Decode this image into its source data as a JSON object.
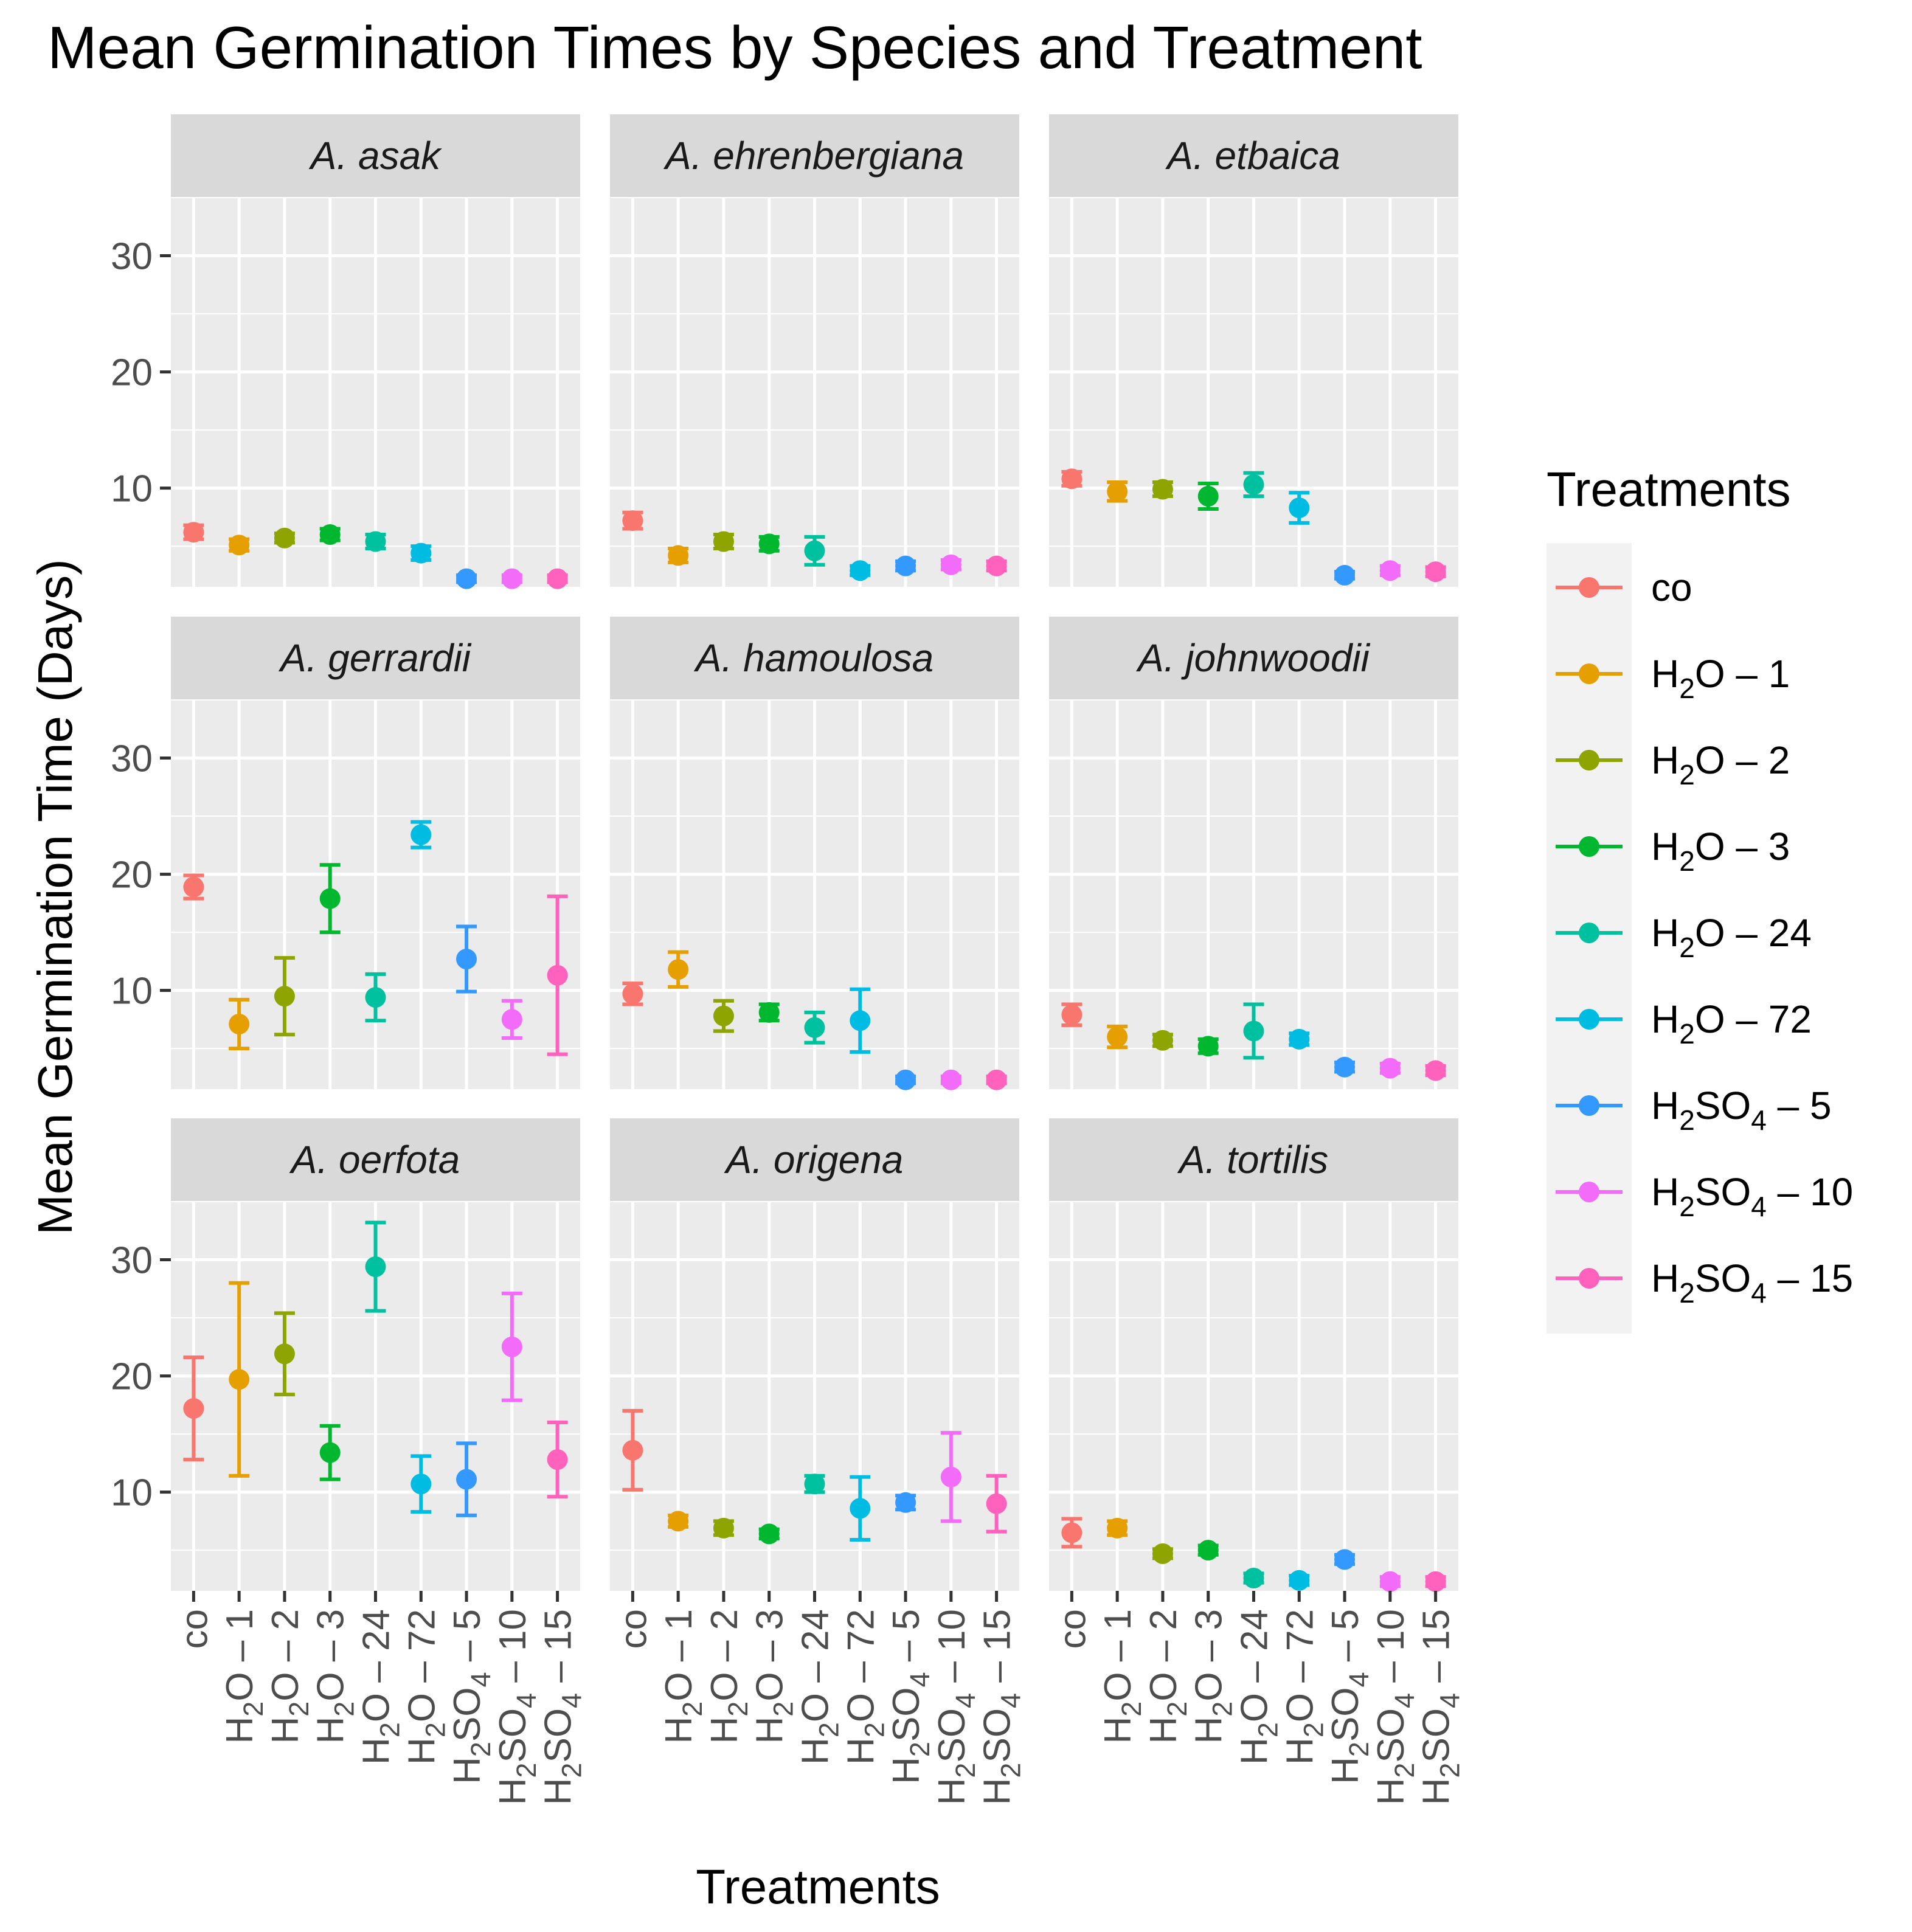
{
  "chart_data": {
    "type": "scatter",
    "variant": "faceted point-range with error bars",
    "title": "Mean Germination Times by Species and Treatment",
    "xlabel": "Treatments",
    "ylabel": "Mean Germination Time (Days)",
    "ylim": [
      1.5,
      35
    ],
    "yticks": [
      10,
      20,
      30
    ],
    "grid": true,
    "facet_layout": "3x3",
    "categories": [
      "co",
      "H2O-1",
      "H2O-2",
      "H2O-3",
      "H2O-24",
      "H2O-72",
      "H2SO4-5",
      "H2SO4-10",
      "H2SO4-15"
    ],
    "category_labels": [
      {
        "chem": "co",
        "num": ""
      },
      {
        "chem": "H|2|O",
        "num": "1"
      },
      {
        "chem": "H|2|O",
        "num": "2"
      },
      {
        "chem": "H|2|O",
        "num": "3"
      },
      {
        "chem": "H|2|O",
        "num": "24"
      },
      {
        "chem": "H|2|O",
        "num": "72"
      },
      {
        "chem": "H|2|SO|4|",
        "num": "5"
      },
      {
        "chem": "H|2|SO|4|",
        "num": "10"
      },
      {
        "chem": "H|2|SO|4|",
        "num": "15"
      }
    ],
    "colors": [
      "#F8766D",
      "#E69F00",
      "#8EA400",
      "#00B72F",
      "#00C19F",
      "#00BCE3",
      "#3399FF",
      "#F26CF9",
      "#FF62BC"
    ],
    "legend": {
      "title": "Treatments",
      "position": "right",
      "entries": [
        "co",
        "H2O-1",
        "H2O-2",
        "H2O-3",
        "H2O-24",
        "H2O-72",
        "H2SO4-5",
        "H2SO4-10",
        "H2SO4-15"
      ]
    },
    "facets": [
      {
        "species": "A. asak",
        "mean": [
          6.2,
          5.1,
          5.7,
          6.0,
          5.4,
          4.4,
          2.2,
          2.2,
          2.2
        ],
        "lower": [
          5.6,
          4.6,
          5.3,
          5.5,
          4.8,
          3.8,
          1.9,
          1.9,
          1.9
        ],
        "upper": [
          6.8,
          5.6,
          6.1,
          6.5,
          6.0,
          5.0,
          2.5,
          2.5,
          2.5
        ]
      },
      {
        "species": "A. ehrenbergiana",
        "mean": [
          7.2,
          4.2,
          5.4,
          5.2,
          4.6,
          2.9,
          3.3,
          3.4,
          3.3
        ],
        "lower": [
          6.5,
          3.6,
          4.8,
          4.6,
          3.4,
          2.5,
          2.9,
          3.0,
          2.9
        ],
        "upper": [
          7.9,
          4.8,
          6.0,
          5.8,
          5.8,
          3.3,
          3.7,
          3.8,
          3.7
        ]
      },
      {
        "species": "A. etbaica",
        "mean": [
          10.8,
          9.7,
          9.9,
          9.3,
          10.3,
          8.3,
          2.5,
          2.9,
          2.8
        ],
        "lower": [
          10.2,
          8.9,
          9.3,
          8.2,
          9.3,
          7.0,
          2.2,
          2.5,
          2.4
        ],
        "upper": [
          11.4,
          10.5,
          10.5,
          10.4,
          11.3,
          9.6,
          2.8,
          3.3,
          3.2
        ]
      },
      {
        "species": "A. gerrardii",
        "mean": [
          18.9,
          7.1,
          9.5,
          17.9,
          9.4,
          23.4,
          12.7,
          7.5,
          11.3
        ],
        "lower": [
          17.9,
          5.0,
          6.2,
          15.0,
          7.4,
          22.3,
          9.9,
          5.9,
          4.5
        ],
        "upper": [
          19.9,
          9.2,
          12.8,
          20.8,
          11.4,
          24.5,
          15.5,
          9.1,
          18.1
        ]
      },
      {
        "species": "A. hamoulosa",
        "mean": [
          9.7,
          11.8,
          7.8,
          8.1,
          6.8,
          7.4,
          2.3,
          2.3,
          2.3
        ],
        "lower": [
          8.8,
          10.3,
          6.5,
          7.4,
          5.5,
          4.7,
          2.0,
          2.0,
          2.0
        ],
        "upper": [
          10.6,
          13.3,
          9.1,
          8.8,
          8.1,
          10.1,
          2.6,
          2.6,
          2.6
        ]
      },
      {
        "species": "A. johnwoodii",
        "mean": [
          7.9,
          6.0,
          5.7,
          5.2,
          6.5,
          5.8,
          3.4,
          3.3,
          3.1
        ],
        "lower": [
          7.0,
          5.1,
          5.2,
          4.6,
          4.2,
          5.3,
          3.0,
          2.9,
          2.7
        ],
        "upper": [
          8.8,
          6.9,
          6.2,
          5.8,
          8.8,
          6.3,
          3.8,
          3.7,
          3.5
        ]
      },
      {
        "species": "A. oerfota",
        "mean": [
          17.2,
          19.7,
          21.9,
          13.4,
          29.4,
          10.7,
          11.1,
          22.5,
          12.8
        ],
        "lower": [
          12.8,
          11.4,
          18.4,
          11.1,
          25.6,
          8.3,
          8.0,
          17.9,
          9.6
        ],
        "upper": [
          21.6,
          28.0,
          25.4,
          15.7,
          33.2,
          13.1,
          14.2,
          27.1,
          16.0
        ]
      },
      {
        "species": "A. origena",
        "mean": [
          13.6,
          7.5,
          6.9,
          6.4,
          10.7,
          8.6,
          9.1,
          11.3,
          9.0
        ],
        "lower": [
          10.2,
          7.0,
          6.3,
          6.0,
          10.0,
          5.9,
          8.5,
          7.5,
          6.6
        ],
        "upper": [
          17.0,
          8.0,
          7.5,
          6.8,
          11.4,
          11.3,
          9.7,
          15.1,
          11.4
        ]
      },
      {
        "species": "A. tortilis",
        "mean": [
          6.5,
          6.9,
          4.7,
          5.0,
          2.6,
          2.4,
          4.2,
          2.3,
          2.3
        ],
        "lower": [
          5.3,
          6.3,
          4.3,
          4.6,
          2.2,
          2.0,
          3.8,
          1.9,
          1.9
        ],
        "upper": [
          7.7,
          7.5,
          5.1,
          5.4,
          3.0,
          2.8,
          4.6,
          2.7,
          2.7
        ]
      }
    ]
  }
}
